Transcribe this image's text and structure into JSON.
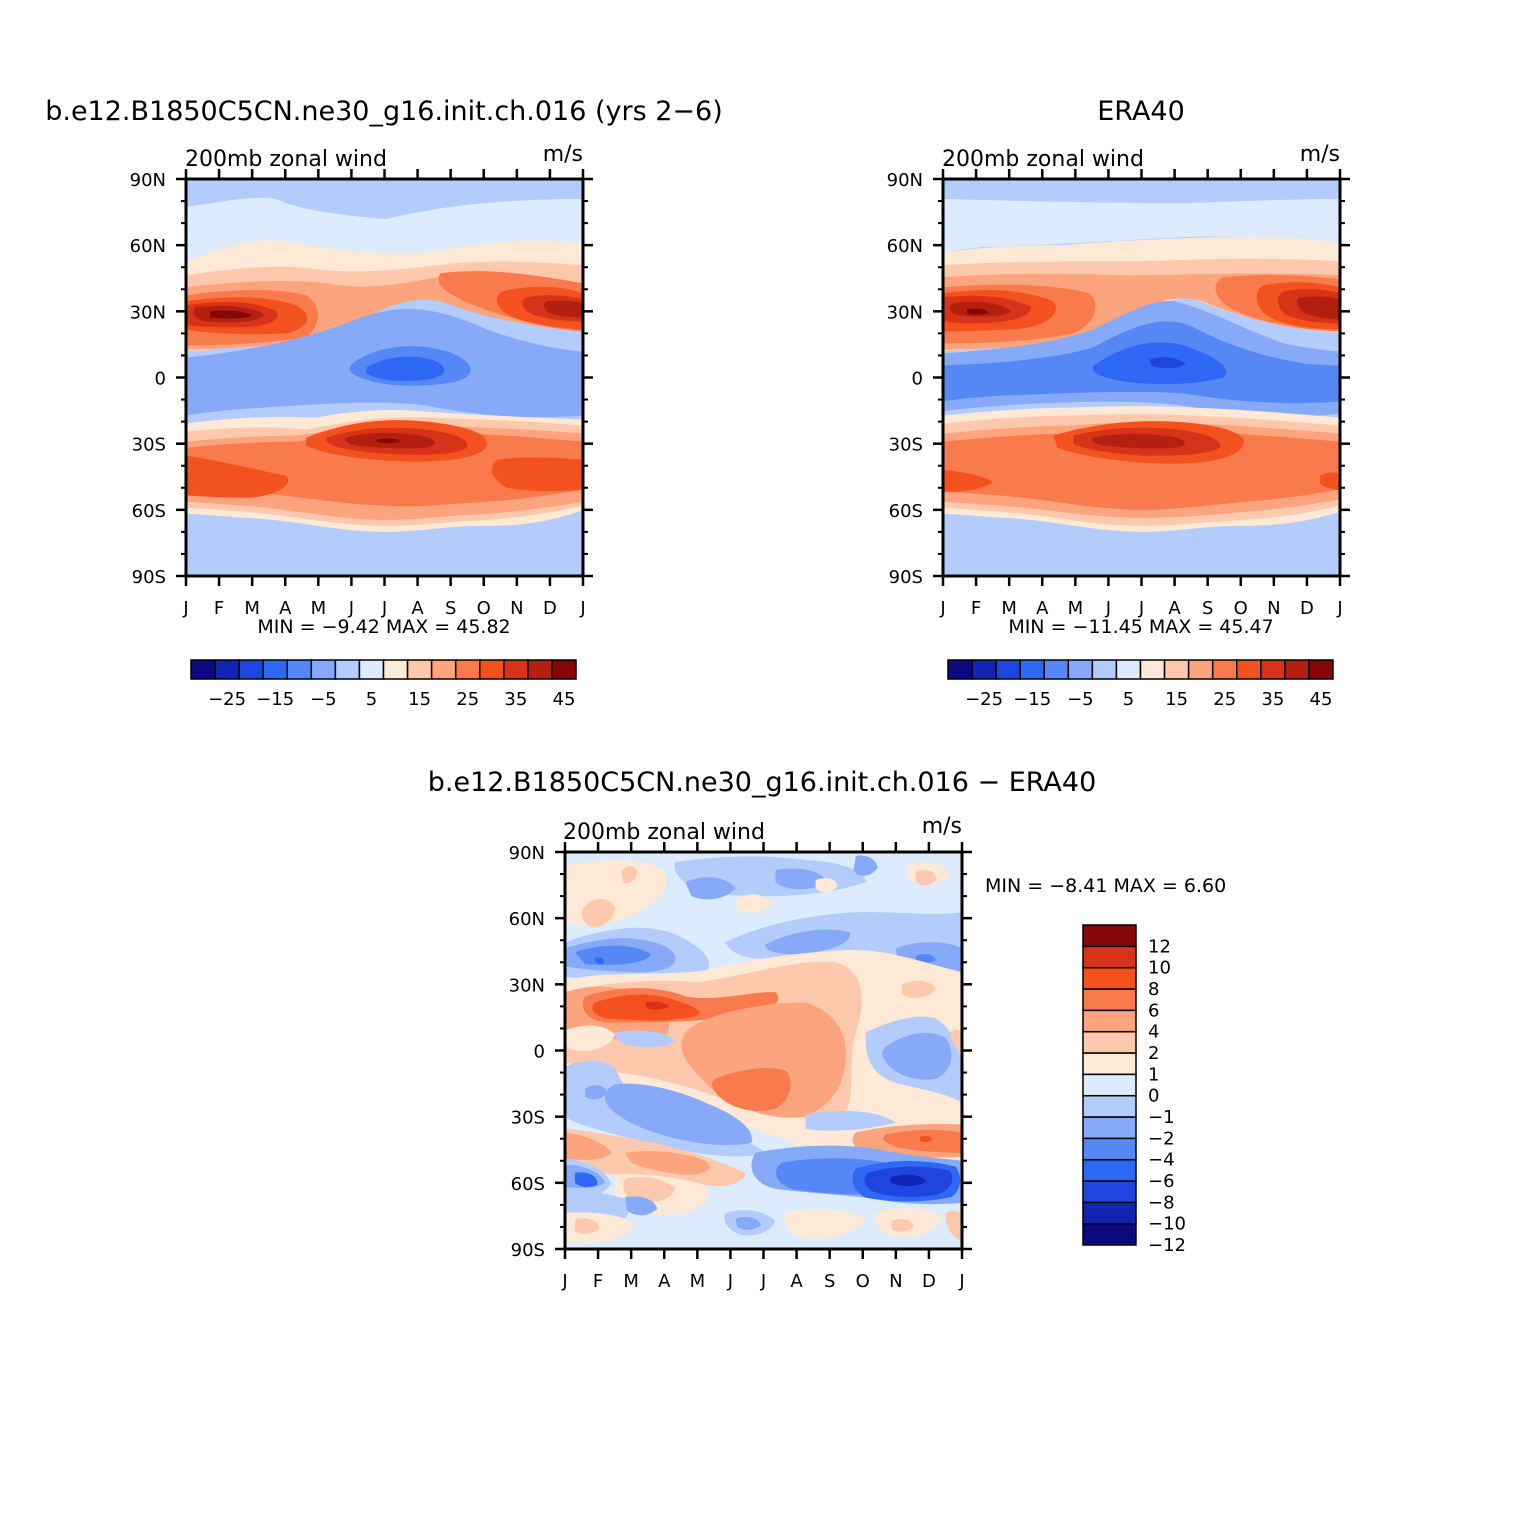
{
  "panels": [
    {
      "id": "model",
      "title": "b.e12.B1850C5CN.ne30_g16.init.ch.016 (yrs 2−6)",
      "left_label": "200mb  zonal  wind",
      "right_label": "m/s",
      "stats": "MIN =   −9.42  MAX =    45.82"
    },
    {
      "id": "obs",
      "title": "ERA40",
      "left_label": "200mb  zonal  wind",
      "right_label": "m/s",
      "stats": "MIN =  −11.45  MAX =    45.47"
    },
    {
      "id": "diff",
      "title": "b.e12.B1850C5CN.ne30_g16.init.ch.016 − ERA40",
      "left_label": "200mb  zonal  wind",
      "right_label": "m/s",
      "stats": "MIN =   −8.41  MAX =     6.60"
    }
  ],
  "y_ticks": [
    "90N",
    "60N",
    "30N",
    "0",
    "30S",
    "60S",
    "90S"
  ],
  "x_ticks": [
    "J",
    "F",
    "M",
    "A",
    "M",
    "J",
    "J",
    "A",
    "S",
    "O",
    "N",
    "D",
    "J"
  ],
  "colorbar_abs": {
    "colors": [
      "#0a0a7e",
      "#1124b4",
      "#1f45e0",
      "#2f68f5",
      "#5588f5",
      "#86aaf7",
      "#b3ccfb",
      "#dcebfe",
      "#fee8d6",
      "#fdc8ac",
      "#fca47e",
      "#f97b4d",
      "#f3521e",
      "#d8331a",
      "#b3200f",
      "#840808"
    ],
    "labels": [
      "−25",
      "−15",
      "−5",
      "5",
      "15",
      "25",
      "35",
      "45"
    ]
  },
  "colorbar_diff": {
    "colors": [
      "#0a0a7e",
      "#1124b4",
      "#1f45e0",
      "#2f68f5",
      "#5588f5",
      "#86aaf7",
      "#b3ccfb",
      "#dcebfe",
      "#fee8d6",
      "#fdc8ac",
      "#fca47e",
      "#f97b4d",
      "#f3521e",
      "#d8331a",
      "#840808"
    ],
    "labels": [
      "12",
      "10",
      "8",
      "6",
      "4",
      "2",
      "1",
      "0",
      "−1",
      "−2",
      "−4",
      "−6",
      "−8",
      "−10",
      "−12"
    ]
  },
  "chart_data": [
    {
      "type": "heatmap",
      "title": "b.e12.B1850C5CN.ne30_g16.init.ch.016 (yrs 2−6)",
      "variable": "200mb  zonal  wind",
      "units": "m/s",
      "x": [
        "J",
        "F",
        "M",
        "A",
        "M",
        "J",
        "J",
        "A",
        "S",
        "O",
        "N",
        "D",
        "J"
      ],
      "y": [
        "90N",
        "60N",
        "30N",
        "0",
        "30S",
        "60S",
        "90S"
      ],
      "levels": [
        -30,
        -25,
        -20,
        -15,
        -10,
        -5,
        0,
        5,
        10,
        15,
        20,
        25,
        30,
        35,
        40,
        45,
        50
      ],
      "values": [
        [
          -5,
          -4,
          -4,
          -4,
          -4,
          -4,
          -4,
          -4,
          -4,
          -4,
          -4,
          -4,
          -4
        ],
        [
          8,
          6,
          4,
          2,
          1,
          1,
          1,
          2,
          3,
          5,
          6,
          8,
          8
        ],
        [
          38,
          38,
          33,
          20,
          14,
          12,
          14,
          18,
          24,
          28,
          32,
          34,
          38
        ],
        [
          -3,
          -4,
          -6,
          -10,
          -15,
          -17,
          -16,
          -14,
          -10,
          -7,
          -5,
          -4,
          -3
        ],
        [
          23,
          26,
          32,
          40,
          44,
          45,
          45,
          42,
          38,
          32,
          30,
          26,
          23
        ],
        [
          28,
          28,
          26,
          22,
          20,
          19,
          20,
          22,
          26,
          30,
          30,
          29,
          28
        ],
        [
          -3,
          -3,
          -4,
          -5,
          -5,
          -5,
          -5,
          -5,
          -5,
          -4,
          -3,
          -3,
          -3
        ]
      ],
      "min": -9.42,
      "max": 45.82
    },
    {
      "type": "heatmap",
      "title": "ERA40",
      "variable": "200mb  zonal  wind",
      "units": "m/s",
      "x": [
        "J",
        "F",
        "M",
        "A",
        "M",
        "J",
        "J",
        "A",
        "S",
        "O",
        "N",
        "D",
        "J"
      ],
      "y": [
        "90N",
        "60N",
        "30N",
        "0",
        "30S",
        "60S",
        "90S"
      ],
      "levels": [
        -30,
        -25,
        -20,
        -15,
        -10,
        -5,
        0,
        5,
        10,
        15,
        20,
        25,
        30,
        35,
        40,
        45,
        50
      ],
      "values": [
        [
          -4,
          -4,
          -4,
          -4,
          -4,
          -4,
          -4,
          -4,
          -4,
          -4,
          -4,
          -4,
          -4
        ],
        [
          7,
          6,
          4,
          2,
          1,
          1,
          1,
          2,
          3,
          5,
          6,
          7,
          7
        ],
        [
          38,
          36,
          30,
          20,
          12,
          10,
          12,
          18,
          24,
          28,
          32,
          35,
          38
        ],
        [
          -5,
          -6,
          -8,
          -12,
          -16,
          -18,
          -18,
          -16,
          -12,
          -8,
          -6,
          -5,
          -5
        ],
        [
          22,
          25,
          32,
          40,
          44,
          45,
          45,
          42,
          38,
          32,
          30,
          26,
          22
        ],
        [
          30,
          28,
          26,
          24,
          22,
          20,
          20,
          22,
          26,
          30,
          30,
          30,
          30
        ],
        [
          -4,
          -4,
          -4,
          -5,
          -5,
          -5,
          -5,
          -5,
          -5,
          -4,
          -4,
          -4,
          -4
        ]
      ],
      "min": -11.45,
      "max": 45.47
    },
    {
      "type": "heatmap",
      "title": "b.e12.B1850C5CN.ne30_g16.init.ch.016 − ERA40",
      "variable": "200mb  zonal  wind",
      "units": "m/s",
      "x": [
        "J",
        "F",
        "M",
        "A",
        "M",
        "J",
        "J",
        "A",
        "S",
        "O",
        "N",
        "D",
        "J"
      ],
      "y": [
        "90N",
        "60N",
        "30N",
        "0",
        "30S",
        "60S",
        "90S"
      ],
      "levels": [
        -12,
        -10,
        -8,
        -6,
        -4,
        -2,
        -1,
        0,
        1,
        2,
        4,
        6,
        8,
        10,
        12
      ],
      "values": [
        [
          0,
          1,
          -1,
          0,
          -2,
          -1,
          0,
          -1,
          0,
          -2,
          1,
          0,
          0
        ],
        [
          -2,
          -3,
          -4,
          -2,
          -1,
          -2,
          1,
          0,
          -1,
          -1,
          -2,
          -1,
          -2
        ],
        [
          2,
          5,
          6,
          4,
          3,
          3,
          3,
          2,
          1,
          1,
          -1,
          1,
          1
        ],
        [
          1,
          0,
          -1,
          1,
          2,
          3,
          4,
          3,
          2,
          -1,
          -3,
          -2,
          0
        ],
        [
          -1,
          -3,
          -4,
          -3,
          -2,
          0,
          1,
          0,
          -1,
          1,
          2,
          4,
          5
        ],
        [
          -6,
          -3,
          -2,
          -1,
          0,
          1,
          0,
          -3,
          -5,
          -7,
          -8,
          -6,
          -3
        ],
        [
          1,
          0,
          -1,
          -2,
          0,
          -1,
          0,
          1,
          0,
          -1,
          1,
          0,
          1
        ]
      ],
      "min": -8.41,
      "max": 6.6
    }
  ]
}
